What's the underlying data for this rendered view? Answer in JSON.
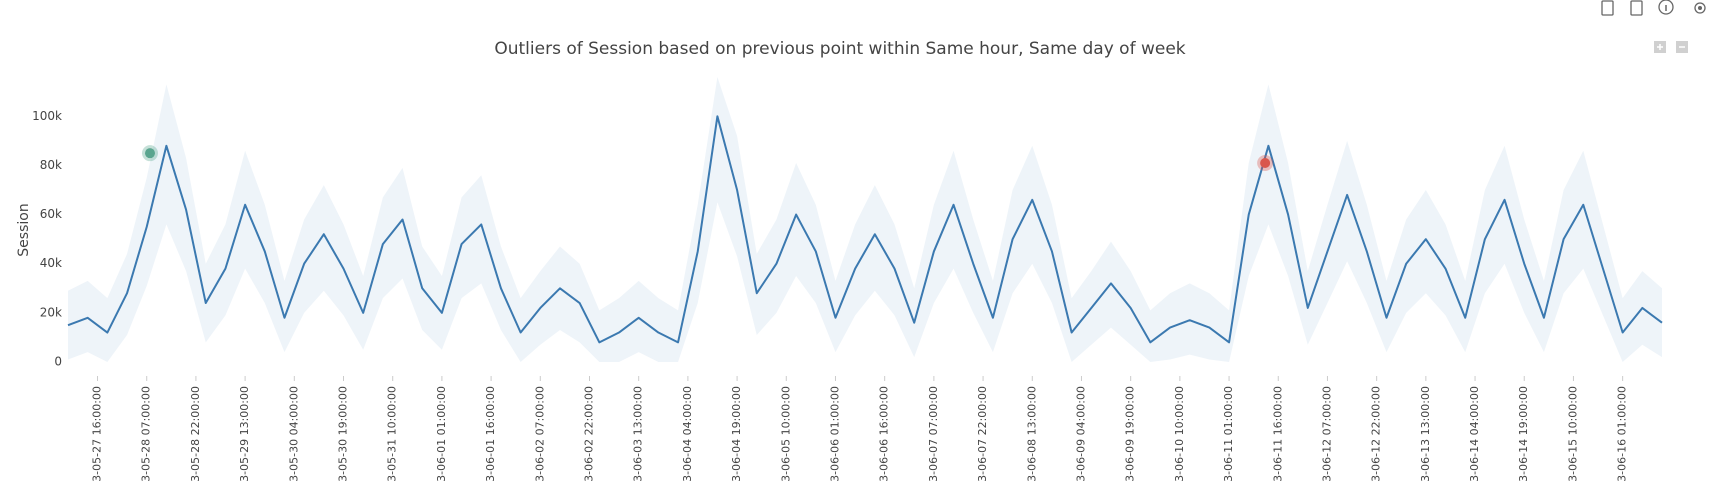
{
  "chart_data": {
    "type": "line",
    "title": "Outliers of Session based on previous point within Same hour, Same day of week",
    "y_label": "Session",
    "xlim": [
      "3-05-27 07:00:00",
      "3-06-16 13:00:00"
    ],
    "xticks": [
      "3-05-27 16:00:00",
      "3-05-28 07:00:00",
      "3-05-28 22:00:00",
      "3-05-29 13:00:00",
      "3-05-30 04:00:00",
      "3-05-30 19:00:00",
      "3-05-31 10:00:00",
      "3-06-01 01:00:00",
      "3-06-01 16:00:00",
      "3-06-02 07:00:00",
      "3-06-02 22:00:00",
      "3-06-03 13:00:00",
      "3-06-04 04:00:00",
      "3-06-04 19:00:00",
      "3-06-05 10:00:00",
      "3-06-06 01:00:00",
      "3-06-06 16:00:00",
      "3-06-07 07:00:00",
      "3-06-07 22:00:00",
      "3-06-08 13:00:00",
      "3-06-09 04:00:00",
      "3-06-09 19:00:00",
      "3-06-10 10:00:00",
      "3-06-11 01:00:00",
      "3-06-11 16:00:00",
      "3-06-12 07:00:00",
      "3-06-12 22:00:00",
      "3-06-13 13:00:00",
      "3-06-14 04:00:00",
      "3-06-14 19:00:00",
      "3-06-15 10:00:00",
      "3-06-16 01:00:00"
    ],
    "ylim": [
      0,
      116000
    ],
    "yticks": [
      0,
      {
        "value": 20000,
        "label": "20k"
      },
      {
        "value": 40000,
        "label": "40k"
      },
      {
        "value": 60000,
        "label": "60k"
      },
      {
        "value": 80000,
        "label": "80k"
      },
      {
        "value": 100000,
        "label": "100k"
      }
    ],
    "x": [
      "3-05-27 07:00:00",
      "3-05-27 13:00:00",
      "3-05-27 19:00:00",
      "3-05-28 01:00:00",
      "3-05-28 07:00:00",
      "3-05-28 13:00:00",
      "3-05-28 19:00:00",
      "3-05-29 01:00:00",
      "3-05-29 07:00:00",
      "3-05-29 13:00:00",
      "3-05-29 19:00:00",
      "3-05-30 01:00:00",
      "3-05-30 07:00:00",
      "3-05-30 13:00:00",
      "3-05-30 19:00:00",
      "3-05-31 01:00:00",
      "3-05-31 07:00:00",
      "3-05-31 13:00:00",
      "3-05-31 19:00:00",
      "3-06-01 01:00:00",
      "3-06-01 07:00:00",
      "3-06-01 13:00:00",
      "3-06-01 19:00:00",
      "3-06-02 01:00:00",
      "3-06-02 07:00:00",
      "3-06-02 13:00:00",
      "3-06-02 19:00:00",
      "3-06-03 01:00:00",
      "3-06-03 07:00:00",
      "3-06-03 13:00:00",
      "3-06-03 19:00:00",
      "3-06-04 01:00:00",
      "3-06-04 07:00:00",
      "3-06-04 13:00:00",
      "3-06-04 19:00:00",
      "3-06-05 01:00:00",
      "3-06-05 07:00:00",
      "3-06-05 13:00:00",
      "3-06-05 19:00:00",
      "3-06-06 01:00:00",
      "3-06-06 07:00:00",
      "3-06-06 13:00:00",
      "3-06-06 19:00:00",
      "3-06-07 01:00:00",
      "3-06-07 07:00:00",
      "3-06-07 13:00:00",
      "3-06-07 19:00:00",
      "3-06-08 01:00:00",
      "3-06-08 07:00:00",
      "3-06-08 13:00:00",
      "3-06-08 19:00:00",
      "3-06-09 01:00:00",
      "3-06-09 07:00:00",
      "3-06-09 13:00:00",
      "3-06-09 19:00:00",
      "3-06-10 01:00:00",
      "3-06-10 07:00:00",
      "3-06-10 13:00:00",
      "3-06-10 19:00:00",
      "3-06-11 01:00:00",
      "3-06-11 07:00:00",
      "3-06-11 13:00:00",
      "3-06-11 19:00:00",
      "3-06-12 01:00:00",
      "3-06-12 07:00:00",
      "3-06-12 13:00:00",
      "3-06-12 19:00:00",
      "3-06-13 01:00:00",
      "3-06-13 07:00:00",
      "3-06-13 13:00:00",
      "3-06-13 19:00:00",
      "3-06-14 01:00:00",
      "3-06-14 07:00:00",
      "3-06-14 13:00:00",
      "3-06-14 19:00:00",
      "3-06-15 01:00:00",
      "3-06-15 07:00:00",
      "3-06-15 13:00:00",
      "3-06-15 19:00:00",
      "3-06-16 01:00:00",
      "3-06-16 07:00:00",
      "3-06-16 13:00:00"
    ],
    "series": [
      {
        "color": "#3b79b0",
        "band_color": "#eef4f9",
        "values": [
          15000,
          18000,
          12000,
          28000,
          55000,
          88000,
          62000,
          24000,
          38000,
          64000,
          45000,
          18000,
          40000,
          52000,
          38000,
          20000,
          48000,
          58000,
          30000,
          20000,
          48000,
          56000,
          30000,
          12000,
          22000,
          30000,
          24000,
          8000,
          12000,
          18000,
          12000,
          8000,
          45000,
          100000,
          70000,
          28000,
          40000,
          60000,
          45000,
          18000,
          38000,
          52000,
          38000,
          16000,
          45000,
          64000,
          40000,
          18000,
          50000,
          66000,
          45000,
          12000,
          22000,
          32000,
          22000,
          8000,
          14000,
          17000,
          14000,
          8000,
          60000,
          88000,
          60000,
          22000,
          45000,
          68000,
          45000,
          18000,
          40000,
          50000,
          38000,
          18000,
          50000,
          66000,
          40000,
          18000,
          50000,
          64000,
          38000,
          12000,
          22000,
          16000
        ],
        "upper": [
          29000,
          33000,
          26000,
          44000,
          75000,
          113000,
          83000,
          40000,
          56000,
          86000,
          64000,
          33000,
          58000,
          72000,
          56000,
          35000,
          67000,
          79000,
          47000,
          35000,
          67000,
          76000,
          47000,
          26000,
          37000,
          47000,
          40000,
          21000,
          26000,
          33000,
          26000,
          21000,
          64000,
          116000,
          92000,
          44000,
          58000,
          81000,
          64000,
          33000,
          56000,
          72000,
          56000,
          30000,
          64000,
          86000,
          58000,
          33000,
          70000,
          88000,
          64000,
          26000,
          37000,
          49000,
          37000,
          21000,
          28000,
          32000,
          28000,
          21000,
          81000,
          113000,
          81000,
          37000,
          64000,
          90000,
          64000,
          33000,
          58000,
          70000,
          56000,
          33000,
          70000,
          88000,
          58000,
          33000,
          70000,
          86000,
          56000,
          26000,
          37000,
          30000
        ],
        "lower": [
          1000,
          4000,
          0,
          11000,
          31000,
          56000,
          37000,
          8000,
          19000,
          38000,
          24000,
          4000,
          20000,
          29000,
          19000,
          5000,
          26000,
          34000,
          13000,
          5000,
          26000,
          32000,
          13000,
          0,
          7000,
          13000,
          8000,
          0,
          0,
          4000,
          0,
          0,
          24000,
          65000,
          43000,
          11000,
          20000,
          35000,
          24000,
          4000,
          19000,
          29000,
          19000,
          2000,
          24000,
          38000,
          20000,
          4000,
          28000,
          40000,
          24000,
          0,
          7000,
          14000,
          7000,
          0,
          1000,
          3000,
          1000,
          0,
          35000,
          56000,
          35000,
          7000,
          24000,
          41000,
          24000,
          4000,
          20000,
          28000,
          19000,
          4000,
          28000,
          40000,
          20000,
          4000,
          28000,
          38000,
          19000,
          0,
          7000,
          2000
        ]
      }
    ],
    "outliers": [
      {
        "x": "3-05-28 08:00:00",
        "value": 85000,
        "color": "#5aa58f"
      },
      {
        "x": "3-06-11 12:00:00",
        "value": 81000,
        "color": "#d9574c"
      }
    ]
  }
}
